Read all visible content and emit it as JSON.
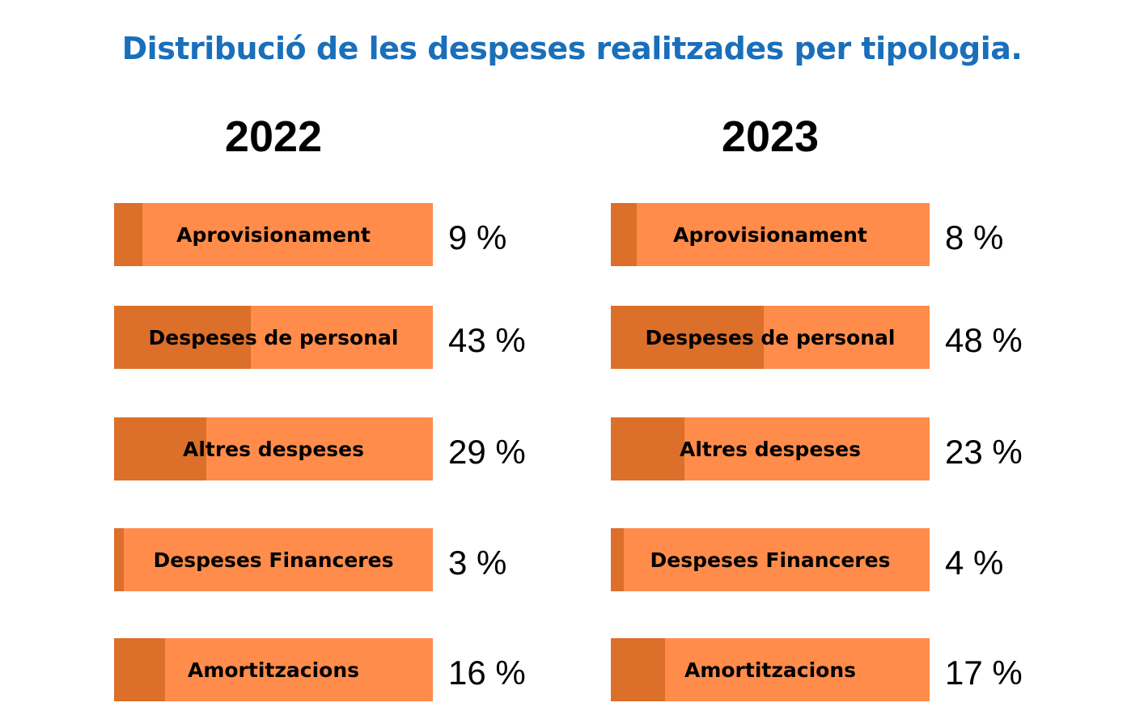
{
  "title": "Distribució de les despeses realitzades per tipologia.",
  "colors": {
    "title": "#1a6fba",
    "bar_background": "#ff8c4a",
    "bar_fill": "#dc6f2a"
  },
  "chart_data": [
    {
      "type": "bar",
      "title": "2022",
      "categories": [
        "Aprovisionament",
        "Despeses de personal",
        "Altres despeses",
        "Despeses Financeres",
        "Amortitzacions"
      ],
      "values": [
        9,
        43,
        29,
        3,
        16
      ],
      "value_labels": [
        "9 %",
        "43 %",
        "29 %",
        "3 %",
        "16 %"
      ],
      "ylim": [
        0,
        100
      ]
    },
    {
      "type": "bar",
      "title": "2023",
      "categories": [
        "Aprovisionament",
        "Despeses de personal",
        "Altres despeses",
        "Despeses Financeres",
        "Amortitzacions"
      ],
      "values": [
        8,
        48,
        23,
        4,
        17
      ],
      "value_labels": [
        "8 %",
        "48 %",
        "23 %",
        "4 %",
        "17 %"
      ],
      "ylim": [
        0,
        100
      ]
    }
  ]
}
